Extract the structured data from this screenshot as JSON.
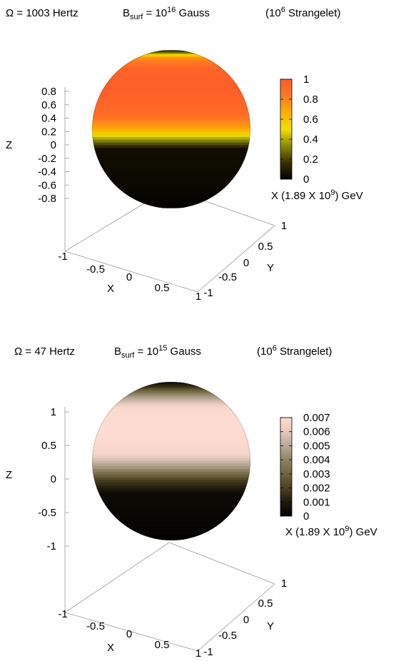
{
  "chart_data": [
    {
      "type": "heatmap",
      "subtype": "surface-3d-sphere",
      "title": {
        "omega_sym": "Ω",
        "omega_val": " = 1003 Hertz",
        "b": "B",
        "b_sub": "surf",
        "b_eq": " = 10",
        "b_exp": "16",
        "b_unit": " Gauss",
        "sl_open": "(10",
        "sl_exp": "6",
        "sl_close": " Strangelet)"
      },
      "zlabel": "Z",
      "xlabel": "X",
      "ylabel": "Y",
      "zticks": [
        "0.8",
        "0.6",
        "0.4",
        "0.2",
        "0",
        "-0.2",
        "-0.4",
        "-0.6",
        "-0.8"
      ],
      "zlim": [
        -0.8,
        0.8
      ],
      "xticks": [
        "-1",
        "-0.5",
        "0",
        "0.5",
        "1"
      ],
      "yticks": [
        "-1",
        "-0.5",
        "0",
        "0.5",
        "1"
      ],
      "colorbar": {
        "ticks": [
          "1",
          "0.8",
          "0.6",
          "0.4",
          "0.2",
          "0"
        ],
        "range": [
          0,
          1
        ],
        "palette": [
          "#000000",
          "#3a3000",
          "#8a8a00",
          "#f0e000",
          "#ffb000",
          "#ff7a20",
          "#ff5a2a"
        ],
        "label": {
          "pre": "X (1.89 X 10",
          "exp": "9",
          "post": ") GeV"
        }
      },
      "profile": [
        {
          "latitude_deg": 90,
          "value": 0.0
        },
        {
          "latitude_deg": 75,
          "value": 0.3
        },
        {
          "latitude_deg": 65,
          "value": 0.75
        },
        {
          "latitude_deg": 50,
          "value": 0.95
        },
        {
          "latitude_deg": 30,
          "value": 0.98
        },
        {
          "latitude_deg": 10,
          "value": 0.9
        },
        {
          "latitude_deg": 0,
          "value": 0.7
        },
        {
          "latitude_deg": -8,
          "value": 0.35
        },
        {
          "latitude_deg": -15,
          "value": 0.05
        },
        {
          "latitude_deg": -90,
          "value": 0.0
        }
      ]
    },
    {
      "type": "heatmap",
      "subtype": "surface-3d-sphere",
      "title": {
        "omega_sym": "Ω",
        "omega_val": " = 47 Hertz",
        "b": "B",
        "b_sub": "surf",
        "b_eq": " = 10",
        "b_exp": "15",
        "b_unit": " Gauss",
        "sl_open": "(10",
        "sl_exp": "6",
        "sl_close": " Strangelet)"
      },
      "zlabel": "Z",
      "xlabel": "X",
      "ylabel": "Y",
      "zticks": [
        "1",
        "0.5",
        "0",
        "-0.5",
        "-1"
      ],
      "zlim": [
        -1,
        1
      ],
      "xticks": [
        "-1",
        "-0.5",
        "0",
        "0.5",
        "1"
      ],
      "yticks": [
        "-1",
        "-0.5",
        "0",
        "0.5",
        "1"
      ],
      "colorbar": {
        "ticks": [
          "0.007",
          "0.006",
          "0.005",
          "0.004",
          "0.003",
          "0.002",
          "0.001",
          "0"
        ],
        "range": [
          0,
          0.007
        ],
        "palette": [
          "#000000",
          "#1e1a0e",
          "#4a4220",
          "#6e6440",
          "#8e8464",
          "#b8a894",
          "#e6cabd",
          "#ffddd2"
        ],
        "label": {
          "pre": "X (1.89 X 10",
          "exp": "9",
          "post": ") GeV"
        }
      },
      "profile": [
        {
          "latitude_deg": 90,
          "value": 0.0
        },
        {
          "latitude_deg": 70,
          "value": 0.0015
        },
        {
          "latitude_deg": 55,
          "value": 0.0045
        },
        {
          "latitude_deg": 42,
          "value": 0.0068
        },
        {
          "latitude_deg": 20,
          "value": 0.007
        },
        {
          "latitude_deg": 5,
          "value": 0.0066
        },
        {
          "latitude_deg": -5,
          "value": 0.0045
        },
        {
          "latitude_deg": -15,
          "value": 0.0018
        },
        {
          "latitude_deg": -25,
          "value": 0.0004
        },
        {
          "latitude_deg": -90,
          "value": 0.0
        }
      ]
    }
  ]
}
